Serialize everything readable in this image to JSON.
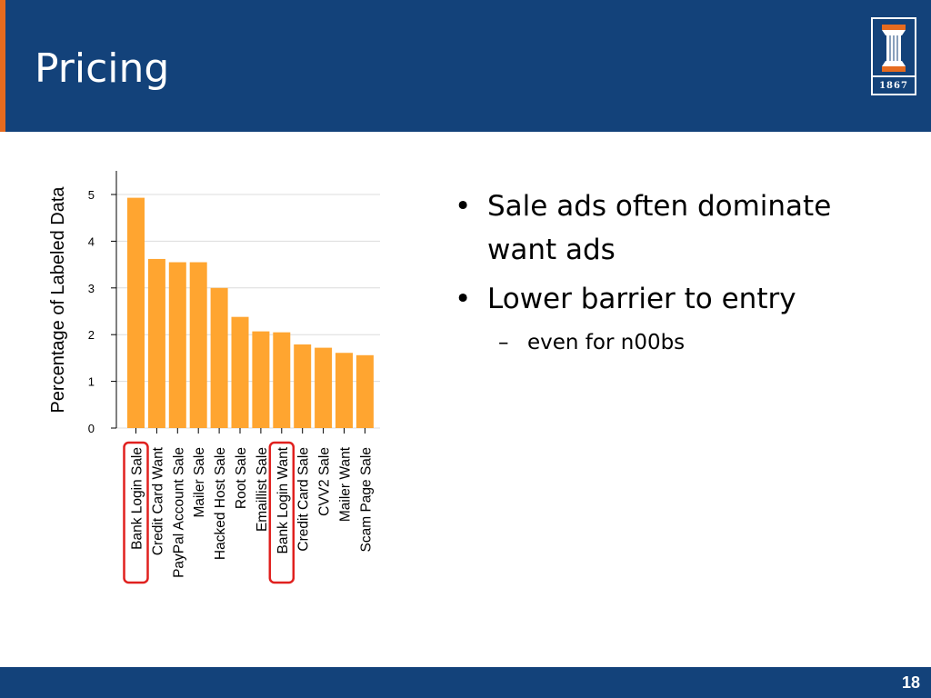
{
  "slide": {
    "title": "Pricing",
    "page_number": "18",
    "logo_year": "1867",
    "header_color": "#13427a",
    "accent_color": "#e66b1f"
  },
  "bullets": [
    {
      "text": "Sale ads often dominate want ads",
      "lines": [
        "Sale ads often dominate",
        "want ads"
      ]
    },
    {
      "text": "Lower barrier to entry"
    }
  ],
  "sub_bullets": [
    {
      "dash": "–",
      "text": "even for n00bs"
    }
  ],
  "chart_data": {
    "type": "bar",
    "ylabel": "Percentage of Labeled Data",
    "xlabel": "",
    "ylim": [
      0,
      5.5
    ],
    "yticks": [
      0,
      1,
      2,
      3,
      4,
      5
    ],
    "grid": true,
    "bar_color": "#ffa530",
    "highlight_color": "#e0201e",
    "highlighted": [
      "Bank Login Sale",
      "Bank Login Want"
    ],
    "categories": [
      "Bank Login Sale",
      "Credit Card Want",
      "PayPal Account Sale",
      "Mailer Sale",
      "Hacked Host Sale",
      "Root Sale",
      "Emaillist Sale",
      "Bank Login Want",
      "Credit Card Sale",
      "CVV2 Sale",
      "Mailer Want",
      "Scam Page Sale"
    ],
    "values": [
      4.93,
      3.62,
      3.55,
      3.55,
      3.0,
      2.38,
      2.07,
      2.05,
      1.79,
      1.72,
      1.61,
      1.56
    ]
  }
}
